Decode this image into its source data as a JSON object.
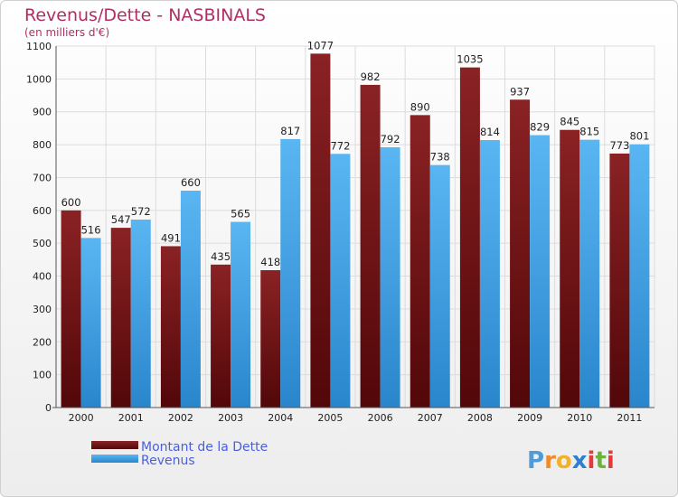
{
  "chart_data": {
    "type": "bar",
    "title": "Revenus/Dette - NASBINALS",
    "subtitle": "(en milliers d'€)",
    "categories": [
      "2000",
      "2001",
      "2002",
      "2003",
      "2004",
      "2005",
      "2006",
      "2007",
      "2008",
      "2009",
      "2010",
      "2011"
    ],
    "series": [
      {
        "name": "Montant de la Dette",
        "color": "#7a1416",
        "values": [
          600,
          547,
          491,
          435,
          418,
          1077,
          982,
          890,
          1035,
          937,
          845,
          773
        ]
      },
      {
        "name": "Revenus",
        "color": "#3c9ee2",
        "values": [
          516,
          572,
          660,
          565,
          817,
          772,
          792,
          738,
          814,
          829,
          815,
          801
        ]
      }
    ],
    "ylim": [
      0,
      1100
    ],
    "yticks": [
      0,
      100,
      200,
      300,
      400,
      500,
      600,
      700,
      800,
      900,
      1000,
      1100
    ],
    "grid": true,
    "legend_position": "bottom-left",
    "xlabel": "",
    "ylabel": ""
  },
  "logo": {
    "letters": [
      "P",
      "r",
      "o",
      "x",
      "i",
      "t",
      "i"
    ],
    "colors": [
      "#4f9ad8",
      "#f08a2a",
      "#f3b12b",
      "#2e7fd0",
      "#e23b3b",
      "#6bb33a",
      "#e23b3b"
    ]
  }
}
